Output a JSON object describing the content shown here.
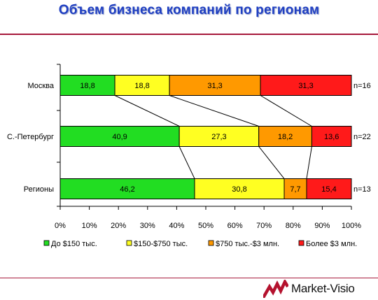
{
  "title": "Объем бизнеса компаний по регионам",
  "brand": {
    "name": "Market-Visio",
    "logo_color": "#b4122e"
  },
  "chart_data": {
    "type": "bar",
    "stacked": true,
    "orientation": "horizontal",
    "percent_axis": true,
    "categories": [
      "Москва",
      "С.-Петербург",
      "Регионы"
    ],
    "n_labels": [
      "n=16",
      "n=22",
      "n=13"
    ],
    "series": [
      {
        "name": "До $150 тыс.",
        "color": "#22dd22",
        "values": [
          18.8,
          40.9,
          46.2
        ]
      },
      {
        "name": "$150-$750 тыс.",
        "color": "#ffff22",
        "values": [
          18.8,
          27.3,
          30.8
        ]
      },
      {
        "name": "$750 тыс.-$3 млн.",
        "color": "#ff9900",
        "values": [
          31.3,
          18.2,
          7.7
        ]
      },
      {
        "name": "Более $3 млн.",
        "color": "#ff1a1a",
        "values": [
          31.3,
          13.6,
          15.4
        ]
      }
    ],
    "value_labels": [
      [
        "18,8",
        "18,8",
        "31,3",
        "31,3"
      ],
      [
        "40,9",
        "27,3",
        "18,2",
        "13,6"
      ],
      [
        "46,2",
        "30,8",
        "7,7",
        "15,4"
      ]
    ],
    "xlim": [
      0,
      100
    ],
    "x_ticks": [
      "0%",
      "10%",
      "20%",
      "30%",
      "40%",
      "50%",
      "60%",
      "70%",
      "80%",
      "90%",
      "100%"
    ],
    "series_connector_lines": true,
    "legend_position": "bottom",
    "grid": false
  }
}
